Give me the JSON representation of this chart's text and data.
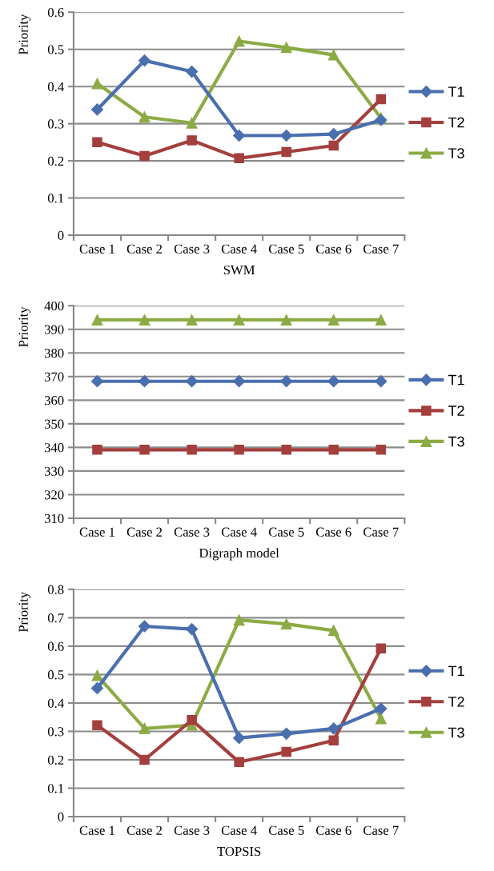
{
  "chart_data": [
    {
      "type": "line",
      "xlabel": "SWM",
      "ylabel": "Priority",
      "categories": [
        "Case 1",
        "Case 2",
        "Case 3",
        "Case 4",
        "Case 5",
        "Case 6",
        "Case 7"
      ],
      "ylim": [
        0,
        0.6
      ],
      "yticks": [
        0,
        0.1,
        0.2,
        0.3,
        0.4,
        0.5,
        0.6
      ],
      "grid": "y",
      "legend": "right",
      "series": [
        {
          "name": "T1",
          "color": "#4a6fae",
          "marker": "diamond",
          "values": [
            0.338,
            0.47,
            0.44,
            0.268,
            0.268,
            0.272,
            0.31
          ]
        },
        {
          "name": "T2",
          "color": "#a33f3d",
          "marker": "square",
          "values": [
            0.25,
            0.213,
            0.255,
            0.207,
            0.224,
            0.241,
            0.366
          ]
        },
        {
          "name": "T3",
          "color": "#8cab45",
          "marker": "triangle",
          "values": [
            0.408,
            0.318,
            0.302,
            0.522,
            0.505,
            0.485,
            0.315
          ]
        }
      ]
    },
    {
      "type": "line",
      "xlabel": "Digraph model",
      "ylabel": "Priority",
      "categories": [
        "Case 1",
        "Case 2",
        "Case 3",
        "Case 4",
        "Case 5",
        "Case 6",
        "Case 7"
      ],
      "ylim": [
        310,
        400
      ],
      "yticks": [
        310,
        320,
        330,
        340,
        350,
        360,
        370,
        380,
        390,
        400
      ],
      "grid": "y",
      "legend": "right",
      "series": [
        {
          "name": "T1",
          "color": "#4a6fae",
          "marker": "diamond",
          "values": [
            368,
            368,
            368,
            368,
            368,
            368,
            368
          ]
        },
        {
          "name": "T2",
          "color": "#a33f3d",
          "marker": "square",
          "values": [
            339,
            339,
            339,
            339,
            339,
            339,
            339
          ]
        },
        {
          "name": "T3",
          "color": "#8cab45",
          "marker": "triangle",
          "values": [
            394,
            394,
            394,
            394,
            394,
            394,
            394
          ]
        }
      ]
    },
    {
      "type": "line",
      "xlabel": "TOPSIS",
      "ylabel": "Priority",
      "categories": [
        "Case 1",
        "Case 2",
        "Case 3",
        "Case 4",
        "Case 5",
        "Case 6",
        "Case 7"
      ],
      "ylim": [
        0,
        0.8
      ],
      "yticks": [
        0,
        0.1,
        0.2,
        0.3,
        0.4,
        0.5,
        0.6,
        0.7,
        0.8
      ],
      "grid": "y",
      "legend": "right",
      "series": [
        {
          "name": "T1",
          "color": "#4a6fae",
          "marker": "diamond",
          "values": [
            0.452,
            0.67,
            0.66,
            0.277,
            0.292,
            0.31,
            0.38
          ]
        },
        {
          "name": "T2",
          "color": "#a33f3d",
          "marker": "square",
          "values": [
            0.322,
            0.2,
            0.34,
            0.192,
            0.228,
            0.268,
            0.592
          ]
        },
        {
          "name": "T3",
          "color": "#8cab45",
          "marker": "triangle",
          "values": [
            0.497,
            0.31,
            0.322,
            0.692,
            0.678,
            0.655,
            0.345
          ]
        }
      ]
    }
  ]
}
